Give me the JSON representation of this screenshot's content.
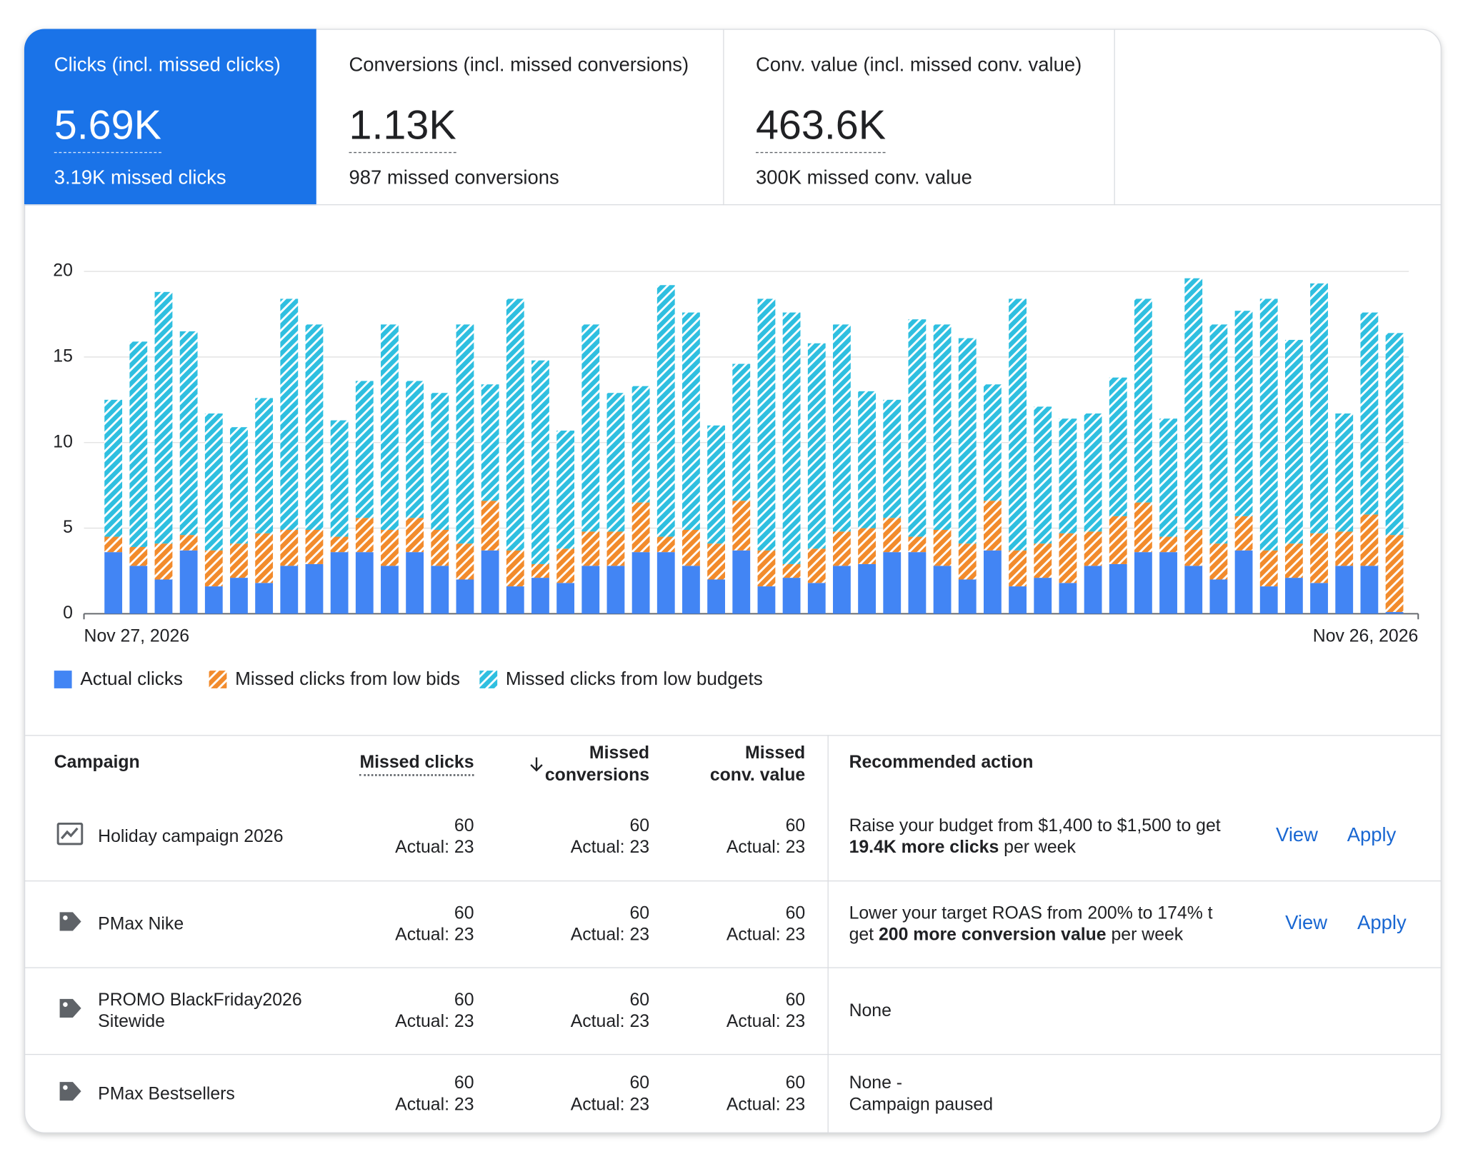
{
  "tabs": [
    {
      "title": "Clicks (incl. missed clicks)",
      "value": "5.69K",
      "sub": "3.19K missed clicks"
    },
    {
      "title": "Conversions (incl. missed conversions)",
      "value": "1.13K",
      "sub": "987 missed conversions"
    },
    {
      "title": "Conv. value (incl. missed conv. value)",
      "value": "463.6K",
      "sub": "300K missed conv. value"
    }
  ],
  "chart_data": {
    "type": "bar",
    "stacked": true,
    "categories": [
      "Nov 27, 2026",
      null,
      null,
      null,
      null,
      null,
      null,
      null,
      null,
      null,
      null,
      null,
      null,
      null,
      null,
      null,
      null,
      null,
      null,
      null,
      null,
      null,
      null,
      null,
      null,
      null,
      null,
      null,
      null,
      null,
      null,
      null,
      null,
      null,
      null,
      null,
      null,
      null,
      null,
      null,
      null,
      null,
      null,
      null,
      null,
      null,
      null,
      null,
      null,
      null,
      null,
      "Nov 26, 2026"
    ],
    "series": [
      {
        "name": "Actual clicks",
        "color": "#4285f4",
        "hatch": false,
        "values": [
          3.6,
          2.8,
          2.0,
          3.7,
          1.6,
          2.1,
          1.8,
          2.8,
          2.9,
          3.6,
          3.6,
          2.8,
          3.6,
          2.8,
          2.0,
          3.7,
          1.6,
          2.1,
          1.8,
          2.8,
          2.8,
          3.6,
          3.6,
          2.8,
          2.0,
          3.7,
          1.6,
          2.1,
          1.8,
          2.8,
          2.9,
          3.6,
          3.6,
          2.8,
          2.0,
          3.7,
          1.6,
          2.1,
          1.8,
          2.8,
          2.9,
          3.6,
          3.6,
          2.8,
          2.0,
          3.7,
          1.6,
          2.1,
          1.8,
          2.8,
          2.8,
          0.1
        ]
      },
      {
        "name": "Missed clicks from low bids",
        "color": "#f28b2c",
        "hatch": true,
        "values": [
          0.9,
          1.1,
          2.1,
          0.9,
          2.1,
          2.0,
          2.9,
          2.1,
          2.0,
          0.9,
          2.0,
          2.1,
          2.0,
          2.1,
          2.1,
          2.9,
          2.1,
          0.8,
          2.0,
          2.0,
          2.0,
          2.9,
          0.9,
          2.1,
          2.1,
          2.9,
          2.1,
          0.8,
          2.0,
          2.0,
          2.1,
          2.0,
          0.9,
          2.1,
          2.1,
          2.9,
          2.1,
          2.0,
          2.9,
          2.0,
          2.8,
          2.9,
          0.9,
          2.1,
          2.1,
          2.0,
          2.1,
          2.0,
          2.9,
          2.0,
          3.0,
          4.5
        ]
      },
      {
        "name": "Missed clicks from low budgets",
        "color": "#2fbfe0",
        "hatch": true,
        "values": [
          8.0,
          12.0,
          14.7,
          11.9,
          8.0,
          6.8,
          7.9,
          13.5,
          12.0,
          6.8,
          8.0,
          12.0,
          8.0,
          8.0,
          12.8,
          6.8,
          14.7,
          11.9,
          6.9,
          12.1,
          8.1,
          6.8,
          14.7,
          12.7,
          6.9,
          8.0,
          14.7,
          14.7,
          12.0,
          12.1,
          8.0,
          6.9,
          12.7,
          12.0,
          12.0,
          6.8,
          14.7,
          8.0,
          6.7,
          6.9,
          8.1,
          11.9,
          6.9,
          14.7,
          12.8,
          12.0,
          14.7,
          11.9,
          14.6,
          6.9,
          11.8,
          11.8
        ]
      }
    ],
    "ylim": [
      0,
      20
    ],
    "yticks": [
      0,
      5,
      10,
      15,
      20
    ],
    "grid": true,
    "legend": "bottom-left"
  },
  "table": {
    "headers": {
      "campaign": "Campaign",
      "missed_clicks": "Missed clicks",
      "missed_conversions": "Missed conversions",
      "missed_conv_value": "Missed conv. value",
      "action": "Recommended action"
    },
    "rows": [
      {
        "campaign": "Holiday campaign 2026",
        "missed_clicks": {
          "value": 60,
          "actual": "Actual: 23"
        },
        "missed_conversions": {
          "value": 60,
          "actual": "Actual: 23"
        },
        "missed_conv_value": {
          "value": 60,
          "actual": "Actual: 23"
        },
        "action": [
          [
            {
              "text": "Raise your budget from $1,400 to $1,500 to get",
              "bold": false
            }
          ],
          [
            {
              "text": "19.4K more clicks",
              "bold": true
            },
            {
              "text": " per week",
              "bold": false
            }
          ]
        ],
        "buttons": [
          "View",
          "Apply"
        ]
      },
      {
        "campaign": "PMax Nike",
        "missed_clicks": {
          "value": 60,
          "actual": "Actual: 23"
        },
        "missed_conversions": {
          "value": 60,
          "actual": "Actual: 23"
        },
        "missed_conv_value": {
          "value": 60,
          "actual": "Actual: 23"
        },
        "action": [
          [
            {
              "text": "Lower your target ROAS from 200% to 174% t",
              "bold": false
            }
          ],
          [
            {
              "text": "get ",
              "bold": false
            },
            {
              "text": "200 more conversion value",
              "bold": true
            },
            {
              "text": " per week",
              "bold": false
            }
          ]
        ],
        "buttons": [
          "View",
          "Apply"
        ]
      },
      {
        "campaign": "PROMO BlackFriday2026 Sitewide",
        "missed_clicks": {
          "value": 60,
          "actual": "Actual: 23"
        },
        "missed_conversions": {
          "value": 60,
          "actual": "Actual: 23"
        },
        "missed_conv_value": {
          "value": 60,
          "actual": "Actual: 23"
        },
        "action": [
          [
            {
              "text": "None",
              "bold": false
            }
          ]
        ]
      },
      {
        "campaign": "PMax Bestsellers",
        "missed_clicks": {
          "value": 60,
          "actual": "Actual: 23"
        },
        "missed_conversions": {
          "value": 60,
          "actual": "Actual: 23"
        },
        "missed_conv_value": {
          "value": 60,
          "actual": "Actual: 23"
        },
        "action": [
          [
            {
              "text": "None -",
              "bold": false
            }
          ],
          [
            {
              "text": "Campaign paused",
              "bold": false
            }
          ]
        ]
      }
    ]
  }
}
